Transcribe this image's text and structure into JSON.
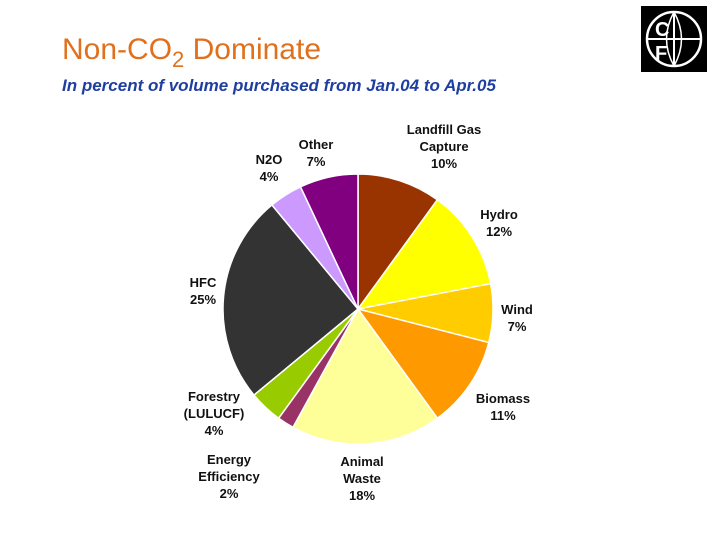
{
  "header": {
    "title_main": "Non-CO",
    "title_sub": "2",
    "title_end": " Dominate",
    "subtitle": "In percent of volume purchased from Jan.04 to Apr.05"
  },
  "logo": {
    "text": "CF",
    "icon": "carbon-finance-logo"
  },
  "chart_data": {
    "type": "pie",
    "title": "Non-CO2 Dominate",
    "subtitle": "In percent of volume purchased from Jan.04 to Apr.05",
    "slices": [
      {
        "label": [
          "Landfill Gas",
          "Capture",
          "10%"
        ],
        "value": 10,
        "color": "#993300"
      },
      {
        "label": [
          "Hydro",
          "12%"
        ],
        "value": 12,
        "color": "#ffff00"
      },
      {
        "label": [
          "Wind",
          "7%"
        ],
        "value": 7,
        "color": "#ffcc00"
      },
      {
        "label": [
          "Biomass",
          "11%"
        ],
        "value": 11,
        "color": "#ff9900"
      },
      {
        "label": [
          "Animal",
          "Waste",
          "18%"
        ],
        "value": 18,
        "color": "#ffff99"
      },
      {
        "label": [
          "Energy",
          "Efficiency",
          "2%"
        ],
        "value": 2,
        "color": "#993366"
      },
      {
        "label": [
          "Forestry",
          "(LULUCF)",
          "4%"
        ],
        "value": 4,
        "color": "#99cc00"
      },
      {
        "label": [
          "HFC",
          "25%"
        ],
        "value": 25,
        "color": "#333333"
      },
      {
        "label": [
          "N2O",
          "4%"
        ],
        "value": 4,
        "color": "#cc99ff"
      },
      {
        "label": [
          "Other",
          "7%"
        ],
        "value": 7,
        "color": "#800080"
      }
    ]
  }
}
